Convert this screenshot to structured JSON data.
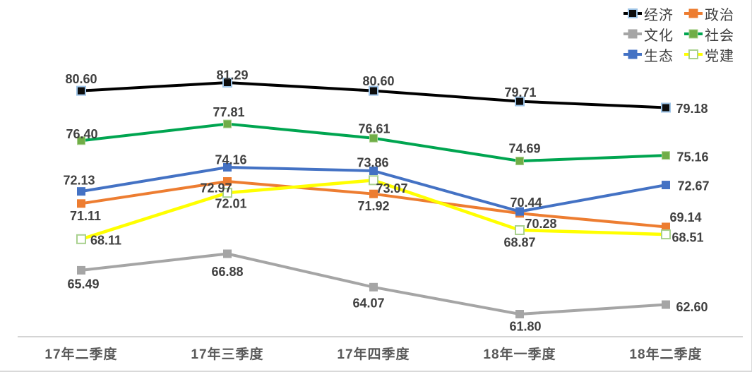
{
  "chart_data": {
    "type": "line",
    "title": "",
    "xlabel": "",
    "ylabel": "",
    "grid": false,
    "value_label_format": "0.00",
    "ylim": [
      61.8,
      81.3
    ],
    "legend_position": "top-right",
    "legend_rows": [
      [
        "经济",
        "政治"
      ],
      [
        "文化",
        "社会"
      ],
      [
        "生态",
        "党建"
      ]
    ],
    "axis_color": "#c6c6c6",
    "data_label_color": "#404040",
    "category_label_color": "#595959",
    "categories": [
      "17年二季度",
      "17年三季度",
      "17年四季度",
      "18年一季度",
      "18年二季度"
    ],
    "series": [
      {
        "id": "jingji",
        "name": "经济",
        "line_color": "#000000",
        "marker_fill": "#0d0d0d",
        "marker_stroke": "#9dc3e6",
        "marker_hollow": false,
        "values": [
          80.6,
          81.29,
          80.6,
          79.71,
          79.18
        ],
        "label_offsets": [
          [
            0,
            -17
          ],
          [
            7,
            -11
          ],
          [
            7,
            -14
          ],
          [
            1,
            -13
          ],
          [
            37,
            1
          ]
        ]
      },
      {
        "id": "zhengzhi",
        "name": "政治",
        "line_color": "#ed7d31",
        "marker_fill": "#ed7d31",
        "marker_stroke": "#ed7d31",
        "marker_hollow": false,
        "values": [
          71.11,
          72.97,
          71.92,
          70.28,
          69.14
        ],
        "label_offsets": [
          [
            6,
            17
          ],
          [
            -16,
            9
          ],
          [
            0,
            17
          ],
          [
            30,
            14
          ],
          [
            28,
            -14
          ]
        ]
      },
      {
        "id": "wenhua",
        "name": "文化",
        "line_color": "#a5a5a5",
        "marker_fill": "#a5a5a5",
        "marker_stroke": "#a5a5a5",
        "marker_hollow": false,
        "values": [
          65.49,
          66.88,
          64.07,
          61.8,
          62.6
        ],
        "label_offsets": [
          [
            3,
            19
          ],
          [
            0,
            25
          ],
          [
            -7,
            22
          ],
          [
            8,
            17
          ],
          [
            37,
            3
          ]
        ]
      },
      {
        "id": "shehui",
        "name": "社会",
        "line_color": "#00a550",
        "marker_fill": "#70ad47",
        "marker_stroke": "#a9d18e",
        "marker_hollow": false,
        "values": [
          76.4,
          77.81,
          76.61,
          74.69,
          75.16
        ],
        "label_offsets": [
          [
            1,
            -10
          ],
          [
            2,
            -17
          ],
          [
            1,
            -14
          ],
          [
            7,
            -18
          ],
          [
            38,
            2
          ]
        ]
      },
      {
        "id": "shengtai",
        "name": "生态",
        "line_color": "#4472c4",
        "marker_fill": "#4472c4",
        "marker_stroke": "#4472c4",
        "marker_hollow": false,
        "values": [
          72.13,
          74.16,
          73.86,
          70.44,
          72.67
        ],
        "label_offsets": [
          [
            -3,
            -16
          ],
          [
            5,
            -11
          ],
          [
            -1,
            -12
          ],
          [
            9,
            -13
          ],
          [
            39,
            1
          ]
        ]
      },
      {
        "id": "dangjian",
        "name": "党建",
        "line_color": "#ffff00",
        "marker_fill": "#ffffff",
        "marker_stroke": "#a9d18e",
        "marker_hollow": true,
        "values": [
          68.11,
          72.01,
          73.07,
          68.87,
          68.51
        ],
        "label_offsets": [
          [
            35,
            1
          ],
          [
            5,
            15
          ],
          [
            26,
            11
          ],
          [
            0,
            17
          ],
          [
            31,
            4
          ]
        ]
      }
    ]
  }
}
